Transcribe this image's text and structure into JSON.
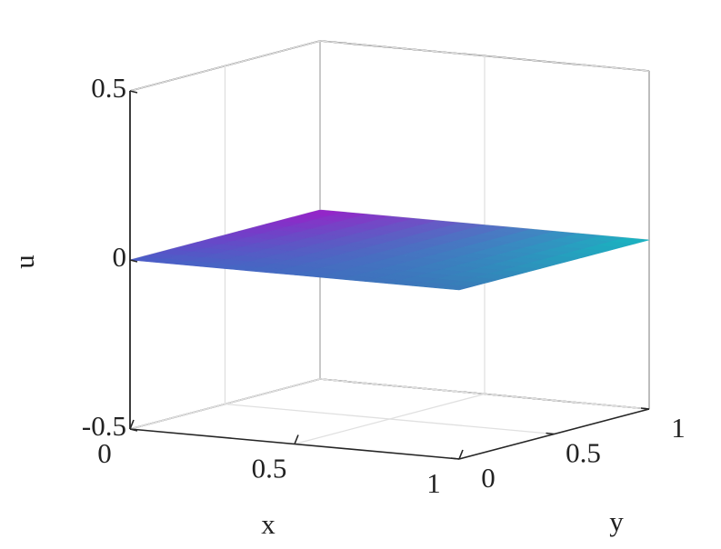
{
  "chart_data": {
    "type": "surface",
    "xlabel": "x",
    "ylabel": "y",
    "zlabel": "u",
    "x": [
      0,
      1
    ],
    "y": [
      0,
      1
    ],
    "z": [
      [
        0,
        0
      ],
      [
        0,
        0
      ]
    ],
    "colors": [
      [
        "#4a5ec8",
        "#3a7ab8"
      ],
      [
        "#9a1ec8",
        "#16b8c0"
      ]
    ],
    "xlim": [
      0,
      1
    ],
    "ylim": [
      0,
      1
    ],
    "zlim": [
      -0.5,
      0.5
    ],
    "xticks": [
      0,
      0.5,
      1
    ],
    "yticks": [
      0,
      0.5,
      1
    ],
    "zticks": [
      -0.5,
      0,
      0.5
    ],
    "grid": true
  }
}
